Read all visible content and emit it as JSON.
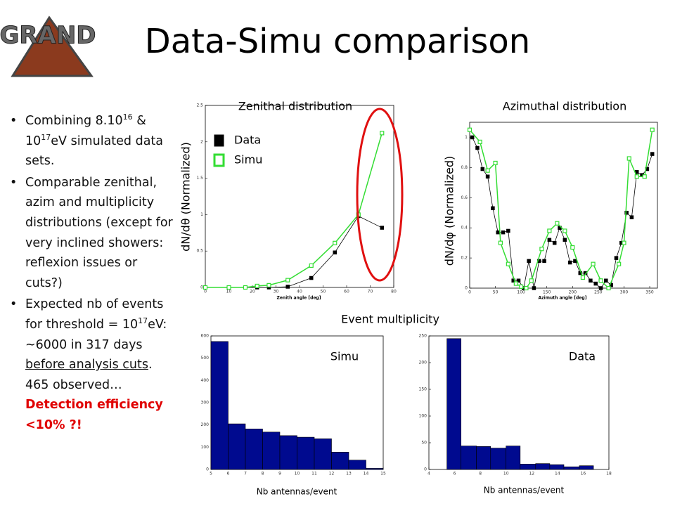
{
  "slide_title": "Data-Simu comparison",
  "logo_text": "GRAND",
  "section_label": "Event  multiplicity",
  "bullets": [
    [
      "Combining 8.10",
      "16",
      " & 10",
      "17",
      "eV simulated data sets."
    ],
    [
      "Comparable zenithal, azim and multiplicity distributions (except for very inclined showers: reflexion issues or cuts?)"
    ],
    [
      "Expected nb of events for threshold = 10",
      "17",
      "eV: ~6000 in 317 days ",
      "before analysis cuts",
      ". 465 observed… ",
      "Detection efficiency <10% ?!"
    ]
  ],
  "chart_data": [
    {
      "type": "line",
      "title": "Zenithal distribution",
      "xlabel": "Zenith angle [deg]",
      "ylabel": "dN/dθ (Normalized)",
      "xlim": [
        0,
        80
      ],
      "xticks": [
        0,
        10,
        20,
        30,
        40,
        50,
        60,
        70,
        80
      ],
      "ylim": [
        0,
        2.5
      ],
      "yticks": [
        0,
        0.5,
        1,
        1.5,
        2,
        2.5
      ],
      "legend": "upper left",
      "series": [
        {
          "name": "Data",
          "color": "#000000",
          "marker": "filled",
          "x": [
            0,
            10,
            17,
            22,
            27,
            35,
            45,
            55,
            65,
            75
          ],
          "values": [
            0,
            0,
            0,
            0,
            0,
            0.01,
            0.13,
            0.48,
            0.98,
            0.82
          ]
        },
        {
          "name": "Simu",
          "color": "#33dd33",
          "marker": "open",
          "x": [
            0,
            10,
            17,
            22,
            27,
            35,
            45,
            55,
            65,
            75
          ],
          "values": [
            0,
            0,
            0,
            0.02,
            0.03,
            0.1,
            0.3,
            0.61,
            1.0,
            2.12
          ]
        }
      ]
    },
    {
      "type": "line",
      "title": "Azimuthal distribution",
      "xlabel": "Azimuth angle [deg]",
      "ylabel": "dN/dφ (Normalized)",
      "xlim": [
        0,
        365
      ],
      "xticks": [
        0,
        50,
        100,
        150,
        200,
        250,
        300,
        350
      ],
      "ylim": [
        0,
        1.1
      ],
      "yticks": [
        0,
        0.2,
        0.4,
        0.6,
        0.8,
        1
      ],
      "series": [
        {
          "name": "Data",
          "color": "#000000",
          "marker": "filled",
          "x": [
            5,
            15,
            25,
            35,
            45,
            55,
            65,
            75,
            85,
            95,
            105,
            115,
            125,
            135,
            145,
            155,
            165,
            175,
            185,
            195,
            205,
            215,
            225,
            235,
            245,
            255,
            265,
            275,
            285,
            295,
            305,
            315,
            325,
            335,
            345,
            355
          ],
          "values": [
            1.0,
            0.93,
            0.79,
            0.74,
            0.53,
            0.37,
            0.37,
            0.38,
            0.05,
            0.05,
            0.0,
            0.18,
            0.0,
            0.18,
            0.18,
            0.32,
            0.3,
            0.4,
            0.32,
            0.17,
            0.18,
            0.1,
            0.1,
            0.05,
            0.03,
            0.0,
            0.05,
            0.02,
            0.2,
            0.3,
            0.5,
            0.47,
            0.77,
            0.75,
            0.79,
            0.89
          ]
        },
        {
          "name": "Simu",
          "color": "#33dd33",
          "marker": "open",
          "x": [
            0,
            20,
            35,
            50,
            60,
            75,
            90,
            100,
            110,
            120,
            140,
            155,
            170,
            185,
            200,
            220,
            240,
            255,
            270,
            290,
            300,
            310,
            325,
            340,
            355
          ],
          "values": [
            1.05,
            0.97,
            0.78,
            0.83,
            0.3,
            0.16,
            0.03,
            0.01,
            0.0,
            0.05,
            0.26,
            0.38,
            0.43,
            0.38,
            0.27,
            0.07,
            0.16,
            0.05,
            0.0,
            0.16,
            0.3,
            0.86,
            0.74,
            0.74,
            1.05
          ]
        }
      ]
    },
    {
      "type": "histogram",
      "title": "Simu",
      "xlabel": "Nb antennas/event",
      "color": "#000a8f",
      "bins": [
        5,
        6,
        7,
        8,
        9,
        10,
        11,
        12,
        13,
        14,
        15
      ],
      "values": [
        575,
        205,
        182,
        168,
        152,
        145,
        138,
        78,
        42,
        5
      ],
      "xlim": [
        5,
        15
      ],
      "xticks": [
        5,
        6,
        7,
        8,
        9,
        10,
        11,
        12,
        13,
        14,
        15
      ],
      "ylim": [
        0,
        600
      ],
      "yticks": [
        0,
        100,
        200,
        300,
        400,
        500,
        600
      ]
    },
    {
      "type": "histogram",
      "title": "Data",
      "xlabel": "Nb antennas/event",
      "color": "#000a8f",
      "bins": [
        5.4,
        6.5,
        7.7,
        8.8,
        10,
        11.1,
        12.3,
        13.4,
        14.5,
        15.7,
        16.8
      ],
      "values": [
        245,
        44,
        43,
        40,
        44,
        10,
        11,
        9,
        5,
        7
      ],
      "xlim": [
        4,
        18
      ],
      "xticks": [
        4,
        6,
        8,
        10,
        12,
        14,
        16,
        18
      ],
      "ylim": [
        0,
        250
      ],
      "yticks": [
        0,
        50,
        100,
        150,
        200,
        250
      ]
    }
  ]
}
